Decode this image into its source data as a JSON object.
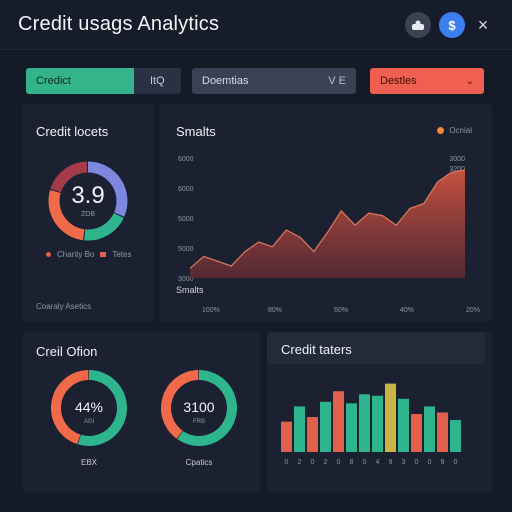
{
  "header": {
    "title": "Credit usags Analytics",
    "profile_icon": "profile-icon",
    "dollar_icon": "$",
    "close_icon": "×"
  },
  "filters": {
    "credit": {
      "label": "Credict",
      "value": "ItQ"
    },
    "domain": {
      "label": "Doemtias",
      "value": "V E"
    },
    "details": {
      "label": "Destles",
      "chevron": "⌄"
    }
  },
  "credit_locets": {
    "title": "Credit locets",
    "value": "3.9",
    "sub": "ZDB",
    "legend": [
      {
        "label": "Charity Bo",
        "color": "#e0604c"
      },
      {
        "label": "Tetes",
        "color": "#e0604c"
      }
    ],
    "footer": "Coaraly Asetics",
    "segments": [
      {
        "color": "#7d87e0",
        "fraction": 0.32
      },
      {
        "color": "#2fb58e",
        "fraction": 0.2
      },
      {
        "color": "#f06a4a",
        "fraction": 0.28
      },
      {
        "color": "#a53a4a",
        "fraction": 0.2
      }
    ]
  },
  "smalts": {
    "title": "Smalts",
    "legend": "Ocnial",
    "legend_color": "#f08a3a"
  },
  "chart_data": {
    "type": "area",
    "title": "Smalts",
    "y_tick_labels": [
      "6000",
      "6000",
      "5000",
      "5000",
      "3000"
    ],
    "right_tick_labels": [
      "3000",
      "3200"
    ],
    "x_tick_labels": [
      "100%",
      "80%",
      "60%",
      "40%",
      "20%"
    ],
    "legend": "Ocnial",
    "xlabel": "Smalts",
    "ylim": [
      0,
      100
    ],
    "x": [
      0,
      5,
      10,
      15,
      20,
      25,
      30,
      35,
      40,
      45,
      50,
      55,
      60,
      65,
      70,
      75,
      80,
      85,
      90,
      95,
      100
    ],
    "values": [
      8,
      18,
      14,
      10,
      22,
      30,
      26,
      40,
      34,
      22,
      38,
      56,
      44,
      54,
      52,
      44,
      58,
      62,
      80,
      88,
      90
    ],
    "color": "#c4513f"
  },
  "credit_ofion": {
    "title": "Creil Ofion",
    "donuts": [
      {
        "value": "44%",
        "sub": "AGI",
        "label": "EBX",
        "color_a": "#2fb58e",
        "color_b": "#f06a4a",
        "fraction": 0.55
      },
      {
        "value": "3100",
        "sub": "FRB",
        "label": "Cpatics",
        "color_a": "#2fb58e",
        "color_b": "#f06a4a",
        "fraction": 0.6
      }
    ]
  },
  "credit_taters": {
    "title": "Credit taters",
    "chart_data": {
      "type": "bar",
      "categories": [
        "0",
        "2",
        "0",
        "2",
        "0",
        "8",
        "0",
        "4",
        "9",
        "3",
        "0",
        "0",
        "9",
        "0"
      ],
      "values": [
        40,
        60,
        46,
        66,
        80,
        64,
        76,
        74,
        90,
        70,
        50,
        60,
        52,
        42
      ],
      "colors": [
        "#e0604c",
        "#2fb58e",
        "#e0604c",
        "#2fb58e",
        "#e0604c",
        "#2fb58e",
        "#2fb58e",
        "#2fb58e",
        "#c9b545",
        "#2fb58e",
        "#e0604c",
        "#2fb58e",
        "#e0604c",
        "#2fb58e"
      ],
      "ylim": [
        0,
        100
      ]
    }
  }
}
